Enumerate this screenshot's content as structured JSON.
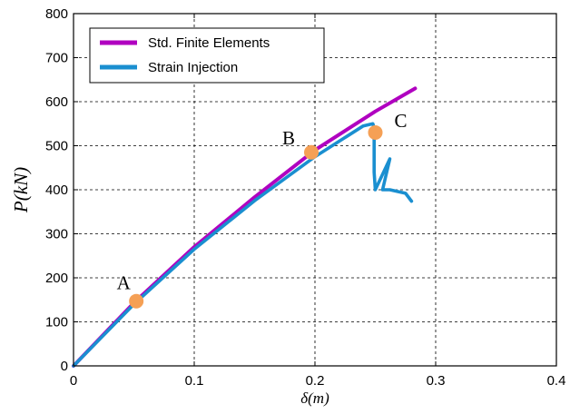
{
  "chart_data": {
    "type": "line",
    "xlabel": "δ(m)",
    "ylabel": "P(kN)",
    "xlim": [
      0,
      0.4
    ],
    "ylim": [
      0,
      800
    ],
    "xticks": [
      0,
      0.1,
      0.2,
      0.3,
      0.4
    ],
    "xtick_labels": [
      "0",
      "0.1",
      "0.2",
      "0.3",
      "0.4"
    ],
    "yticks": [
      0,
      100,
      200,
      300,
      400,
      500,
      600,
      700,
      800
    ],
    "ytick_labels": [
      "0",
      "100",
      "200",
      "300",
      "400",
      "500",
      "600",
      "700",
      "800"
    ],
    "grid": true,
    "legend_position": "top-left",
    "series": [
      {
        "name": "Std. Finite Elements",
        "color": "#b000c0",
        "x": [
          0,
          0.05,
          0.1,
          0.15,
          0.2,
          0.25,
          0.283
        ],
        "y": [
          0,
          143,
          270,
          383,
          490,
          578,
          630
        ]
      },
      {
        "name": "Strain Injection",
        "color": "#1a8fd0",
        "x": [
          0,
          0.05,
          0.1,
          0.15,
          0.2,
          0.24,
          0.248,
          0.249,
          0.249,
          0.25,
          0.262,
          0.256,
          0.262,
          0.275,
          0.28
        ],
        "y": [
          0,
          140,
          265,
          375,
          475,
          545,
          550,
          540,
          440,
          400,
          470,
          400,
          400,
          392,
          374
        ]
      }
    ],
    "markers": [
      {
        "label": "A",
        "x": 0.052,
        "y": 147,
        "color": "#f5a055"
      },
      {
        "label": "B",
        "x": 0.197,
        "y": 485,
        "color": "#f5a055"
      },
      {
        "label": "C",
        "x": 0.25,
        "y": 530,
        "color": "#f5a055"
      }
    ]
  }
}
